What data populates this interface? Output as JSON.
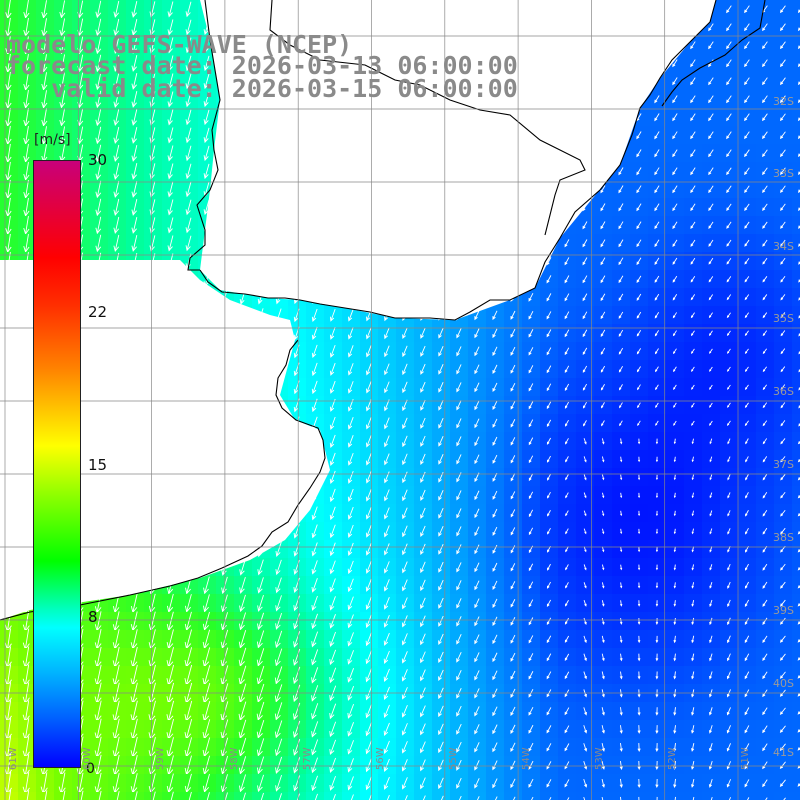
{
  "title": {
    "line1": "modelo GEFS-WAVE (NCEP)",
    "line2": "forecast date: 2026-03-13 06:00:00",
    "line3": "   valid date: 2026-03-15 06:00:00"
  },
  "colorbar": {
    "unit": "[m/s]",
    "ticks": [
      "30",
      "22",
      "15",
      "8"
    ],
    "bottom_tick": "0",
    "colors": [
      "#0000ff",
      "#00b0ff",
      "#00ffff",
      "#00ff00",
      "#ffff00",
      "#ff8000",
      "#ff0000",
      "#d0006a"
    ]
  },
  "lat_labels": [
    "32S",
    "33S",
    "34S",
    "35S",
    "36S",
    "37S",
    "38S",
    "39S",
    "40S",
    "41S"
  ],
  "lon_labels": [
    "61W",
    "60W",
    "59W",
    "58W",
    "57W",
    "56W",
    "55W",
    "54W",
    "53W",
    "52W",
    "51W"
  ],
  "colors": {
    "land": "#ffffff",
    "coast": "#000000",
    "grid": "#888888",
    "arrow": "#ffffff",
    "title": "#8a8a8a"
  },
  "map_data": {
    "variable": "wind speed",
    "unit": "m/s",
    "range": [
      0,
      30
    ],
    "flow": "mostly northeasterly-to-southward winds ~8-12 m/s in the west, weak (<5 m/s) winds in the east"
  }
}
